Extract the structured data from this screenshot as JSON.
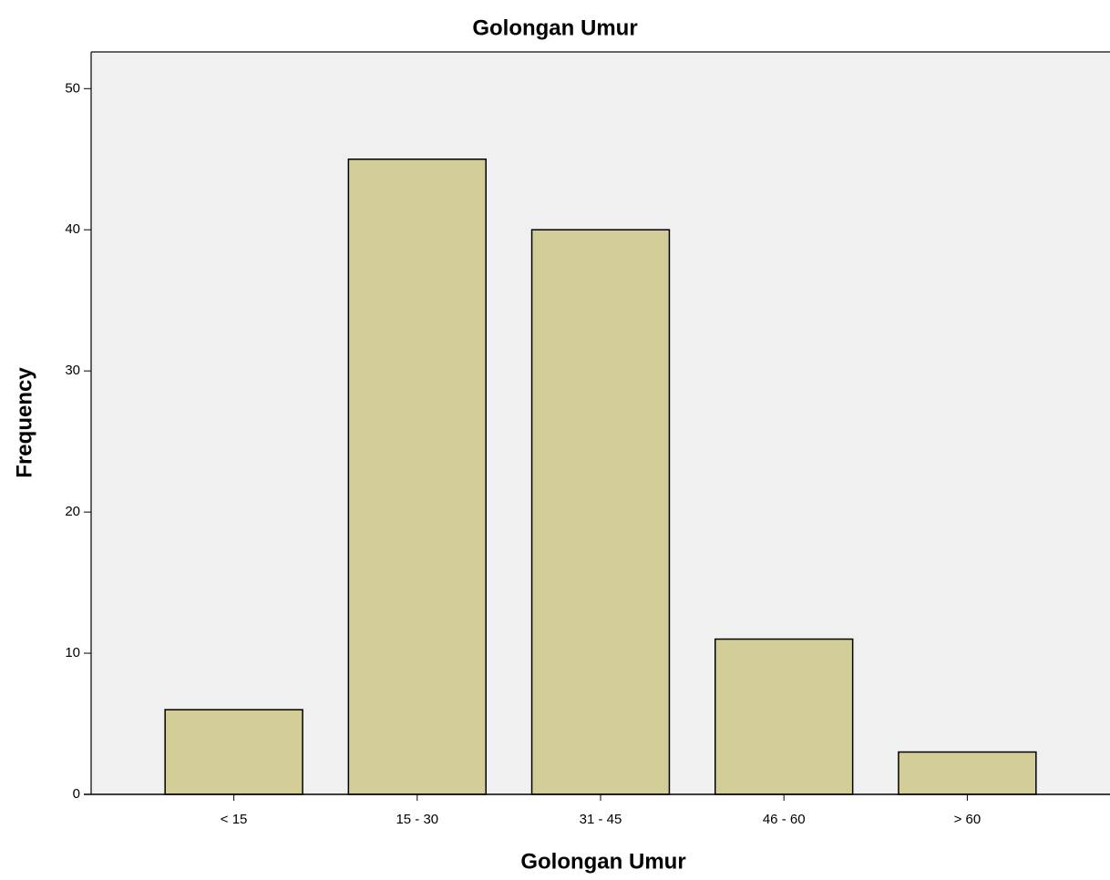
{
  "chart_data": {
    "type": "bar",
    "title": "Golongan Umur",
    "x_label": "Golongan Umur",
    "y_label": "Frequency",
    "categories": [
      "< 15",
      "15 - 30",
      "31 - 45",
      "46 - 60",
      "> 60"
    ],
    "values": [
      6,
      45,
      40,
      11,
      3
    ],
    "color": "#d3ce97",
    "ylim": [
      0,
      52.6
    ],
    "yticks": [
      0,
      10,
      20,
      30,
      40,
      50
    ],
    "grid": false
  }
}
